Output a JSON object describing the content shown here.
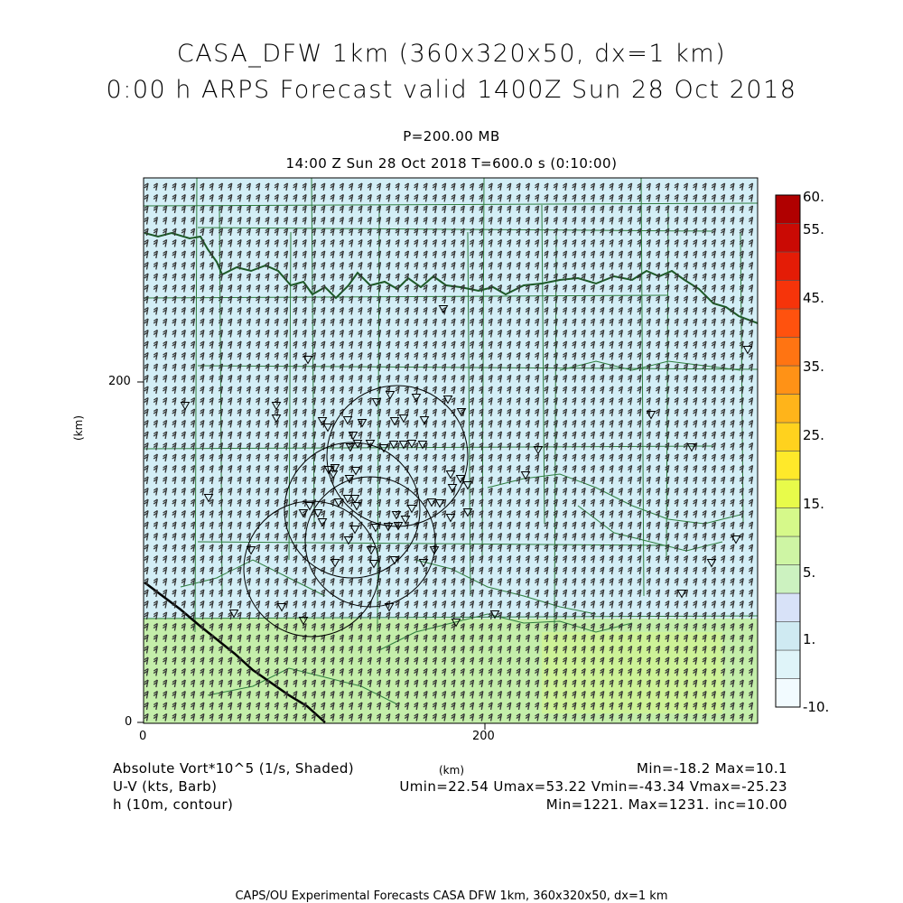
{
  "title": {
    "line1": "CASA_DFW 1km (360x320x50, dx=1 km)",
    "line2": "0:00 h ARPS Forecast valid 1400Z Sun 28 Oct 2018"
  },
  "subtitle": {
    "level": "P=200.00 MB",
    "time": "14:00 Z Sun 28 Oct 2018    T=600.0 s (0:10:00)"
  },
  "axes": {
    "x_ticks": [
      "0",
      "200"
    ],
    "y_ticks": [
      "0",
      "200"
    ],
    "x_unit": "(km)",
    "y_unit": "(km)",
    "x_range_km": [
      0,
      360
    ],
    "y_range_km": [
      0,
      320
    ]
  },
  "colorbar": {
    "labels": [
      "60.",
      "55.",
      "45.",
      "35.",
      "25.",
      "15.",
      "5.",
      "1.",
      "-10."
    ],
    "colors": [
      "#f2fbff",
      "#dff4f9",
      "#cfeaf2",
      "#d8e2f8",
      "#ccf2c0",
      "#cef5a4",
      "#d6f98a",
      "#e8fb4a",
      "#ffe92a",
      "#ffd21e",
      "#ffb41a",
      "#ff9216",
      "#ff7412",
      "#ff520e",
      "#f6340a",
      "#e41c06",
      "#ca0a04",
      "#b00000"
    ]
  },
  "legend": {
    "field1": "Absolute Vort*10^5 (1/s, Shaded)",
    "field2": "U-V (kts, Barb)",
    "field3": "h (10m, contour)",
    "stats1": "Min=-18.2 Max=10.1",
    "stats2": "Umin=22.54 Umax=53.22 Vmin=-43.34 Vmax=-25.23",
    "stats3": "Min=1221. Max=1231. inc=10.00",
    "xunit": "(km)"
  },
  "footer": "CAPS/OU Experimental Forecasts  CASA DFW 1km, 360x320x50, dx=1 km",
  "map_colors": {
    "upper_region": "#d3eef6",
    "lower_region": "#c4eeaa",
    "county_lines": "#2e7d3e",
    "river": "#1e5a28",
    "barbs": "#333333",
    "contour": "#000000"
  }
}
